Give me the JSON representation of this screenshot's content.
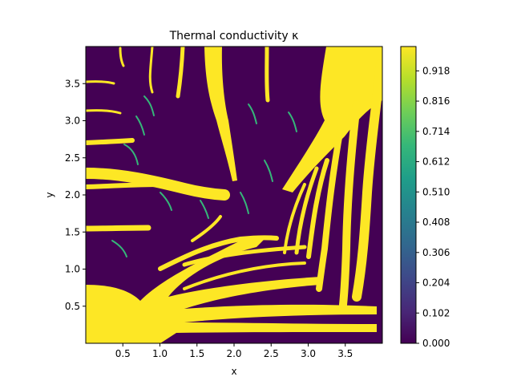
{
  "chart_data": {
    "type": "heatmap",
    "title": "Thermal conductivity κ",
    "xlabel": "x",
    "ylabel": "y",
    "xlim": [
      0,
      4
    ],
    "ylim": [
      0,
      4
    ],
    "x_ticks": [
      0.5,
      1.0,
      1.5,
      2.0,
      2.5,
      3.0,
      3.5
    ],
    "x_tick_labels": [
      "0.5",
      "1.0",
      "1.5",
      "2.0",
      "2.5",
      "3.0",
      "3.5"
    ],
    "y_ticks": [
      0.5,
      1.0,
      1.5,
      2.0,
      2.5,
      3.0,
      3.5
    ],
    "y_tick_labels": [
      "0.5",
      "1.0",
      "1.5",
      "2.0",
      "2.5",
      "3.0",
      "3.5"
    ],
    "colormap": "viridis",
    "vmin": 0.0,
    "vmax": 1.0,
    "colorbar_ticks": [
      0.0,
      0.102,
      0.204,
      0.306,
      0.408,
      0.51,
      0.612,
      0.714,
      0.816,
      0.918
    ],
    "colorbar_tick_labels": [
      "0.000",
      "0.102",
      "0.204",
      "0.306",
      "0.408",
      "0.510",
      "0.612",
      "0.714",
      "0.816",
      "0.918"
    ],
    "description_values": {
      "background_value": 0.0,
      "branch_value": 1.0
    }
  },
  "colors": {
    "low": "#440154",
    "high": "#fde725",
    "viridis_stops": [
      "#440154",
      "#482878",
      "#3e4989",
      "#31688e",
      "#26828e",
      "#1f9e89",
      "#35b779",
      "#6ece58",
      "#b5de2b",
      "#fde725"
    ]
  }
}
